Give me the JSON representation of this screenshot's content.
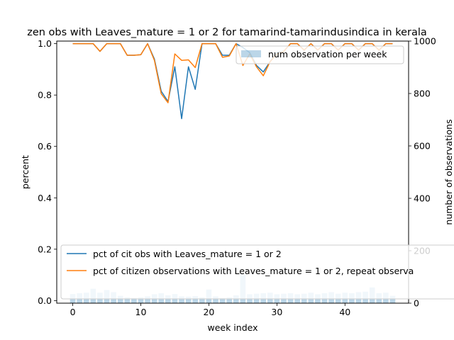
{
  "chart_data": {
    "type": "line",
    "title": "zen obs with Leaves_mature = 1 or 2 for tamarind-tamarindusindica in kerala",
    "xlabel": "week index",
    "ylabel": "percent",
    "y2label": "number of observations",
    "xlim": [
      -2.35,
      49.35
    ],
    "ylim": [
      -0.01,
      1.01
    ],
    "y2lim": [
      0,
      1000
    ],
    "x_ticks": [
      0,
      10,
      20,
      30,
      40
    ],
    "y_ticks": [
      0.0,
      0.2,
      0.4,
      0.6,
      0.8,
      1.0
    ],
    "y2_ticks": [
      0,
      200,
      400,
      600,
      800,
      1000
    ],
    "grid": false,
    "x": [
      0,
      1,
      2,
      3,
      4,
      5,
      6,
      7,
      8,
      9,
      10,
      11,
      12,
      13,
      14,
      15,
      16,
      17,
      18,
      19,
      20,
      21,
      22,
      23,
      24,
      25,
      26,
      27,
      28,
      29,
      30,
      31,
      32,
      33,
      34,
      35,
      36,
      37,
      38,
      39,
      40,
      41,
      42,
      43,
      44,
      45,
      46,
      47
    ],
    "series": [
      {
        "name": "pct of cit obs with Leaves_mature = 1 or 2",
        "color": "#1f77b4",
        "axis": "left",
        "values": [
          1.0,
          1.0,
          1.0,
          1.0,
          0.97,
          1.0,
          1.0,
          1.0,
          0.955,
          0.955,
          0.957,
          1.0,
          0.94,
          0.815,
          0.775,
          0.91,
          0.708,
          0.91,
          0.822,
          1.0,
          1.0,
          1.0,
          0.955,
          0.955,
          1.0,
          0.985,
          0.965,
          0.915,
          0.89,
          0.93,
          0.965,
          0.97,
          1.0,
          1.0,
          0.975,
          1.0,
          0.975,
          1.0,
          1.0,
          0.975,
          1.0,
          1.0,
          0.975,
          1.0,
          1.0,
          0.975,
          1.0,
          1.0
        ]
      },
      {
        "name": "pct of citizen observations with Leaves_mature = 1 or 2, repeat observa",
        "color": "#ff7f0e",
        "axis": "left",
        "values": [
          1.0,
          1.0,
          1.0,
          1.0,
          0.97,
          1.0,
          1.0,
          1.0,
          0.955,
          0.955,
          0.957,
          1.0,
          0.935,
          0.805,
          0.77,
          0.96,
          0.935,
          0.937,
          0.907,
          1.0,
          1.0,
          1.0,
          0.947,
          0.952,
          1.0,
          0.915,
          0.96,
          0.91,
          0.875,
          0.93,
          0.96,
          0.97,
          1.0,
          1.0,
          0.975,
          1.0,
          0.975,
          1.0,
          1.0,
          0.975,
          1.0,
          1.0,
          0.975,
          1.0,
          1.0,
          0.975,
          1.0,
          1.0
        ]
      },
      {
        "name": "num observation per week",
        "color": "#1f77b4",
        "type": "bar",
        "axis": "right",
        "values": [
          35,
          38,
          40,
          55,
          40,
          50,
          42,
          28,
          22,
          20,
          22,
          26,
          34,
          38,
          30,
          35,
          26,
          25,
          27,
          22,
          52,
          26,
          20,
          22,
          30,
          110,
          34,
          36,
          38,
          40,
          34,
          36,
          38,
          34,
          36,
          40,
          34,
          38,
          42,
          36,
          40,
          38,
          42,
          44,
          60,
          38,
          40,
          28
        ]
      }
    ],
    "legend": {
      "upper_placement": "top-right",
      "lower_placement": "bottom-left"
    }
  }
}
